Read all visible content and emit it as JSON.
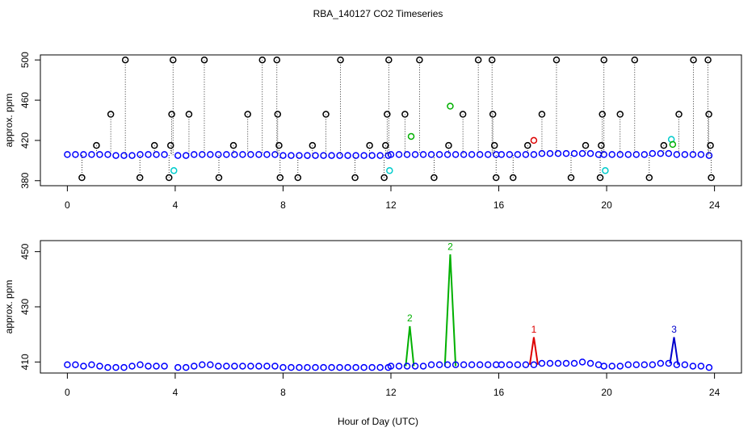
{
  "title": "RBA_140127  CO2 Timeseries",
  "x_label": "Hour of Day (UTC)",
  "chart_data": [
    {
      "type": "scatter",
      "y_label": "approx. ppm",
      "xlim": [
        -1,
        25
      ],
      "ylim": [
        375,
        505
      ],
      "xticks": [
        0,
        4,
        8,
        12,
        16,
        20,
        24
      ],
      "yticks": [
        380,
        420,
        460,
        500
      ],
      "series": [
        {
          "color": "#0000ff",
          "style": "points",
          "x": [
            0,
            0.3,
            0.6,
            0.9,
            1.2,
            1.5,
            1.8,
            2.1,
            2.4,
            2.7,
            3.0,
            3.3,
            3.6,
            4.1,
            4.4,
            4.7,
            5.0,
            5.3,
            5.6,
            5.9,
            6.2,
            6.5,
            6.8,
            7.1,
            7.4,
            7.7,
            8.0,
            8.3,
            8.6,
            8.9,
            9.2,
            9.5,
            9.8,
            10.1,
            10.4,
            10.7,
            11.0,
            11.3,
            11.6,
            11.9,
            12.0,
            12.3,
            12.6,
            12.9,
            13.2,
            13.5,
            13.8,
            14.1,
            14.4,
            14.7,
            15.0,
            15.3,
            15.6,
            15.9,
            16.1,
            16.4,
            16.7,
            17.0,
            17.3,
            17.6,
            17.9,
            18.2,
            18.5,
            18.8,
            19.1,
            19.4,
            19.7,
            19.9,
            20.2,
            20.5,
            20.8,
            21.1,
            21.4,
            21.7,
            22.0,
            22.3,
            22.6,
            22.9,
            23.2,
            23.5,
            23.8
          ],
          "values": [
            406,
            406,
            406,
            406,
            406,
            406,
            405,
            405,
            405,
            406,
            406,
            406,
            406,
            405,
            405,
            406,
            406,
            406,
            406,
            406,
            406,
            406,
            406,
            406,
            406,
            406,
            405,
            405,
            405,
            405,
            405,
            405,
            405,
            405,
            405,
            405,
            405,
            405,
            405,
            405,
            406,
            406,
            406,
            406,
            406,
            406,
            406,
            406,
            406,
            406,
            406,
            406,
            406,
            406,
            406,
            406,
            406,
            406,
            406,
            407,
            407,
            407,
            407,
            407,
            407,
            407,
            406,
            406,
            406,
            406,
            406,
            406,
            406,
            407,
            407,
            407,
            406,
            406,
            406,
            406,
            405
          ]
        },
        {
          "color": "#000000",
          "style": "drop",
          "x": [
            0.54,
            1.08,
            1.61,
            2.15,
            2.69,
            3.23,
            3.77,
            3.83,
            3.87,
            3.92,
            4.51,
            5.08,
            5.62,
            6.16,
            6.69,
            7.23,
            7.77,
            7.8,
            7.85,
            7.89,
            8.55,
            9.09,
            9.59,
            10.13,
            10.67,
            11.21,
            11.75,
            11.8,
            11.86,
            11.92,
            12.52,
            13.06,
            13.6,
            14.14,
            14.67,
            15.24,
            15.75,
            15.78,
            15.84,
            15.9,
            16.53,
            17.07,
            17.6,
            18.14,
            18.68,
            19.22,
            19.76,
            19.8,
            19.84,
            19.9,
            20.5,
            21.04,
            21.58,
            22.12,
            22.68,
            23.22,
            23.76,
            23.79,
            23.85,
            23.88
          ],
          "values": [
            383,
            415,
            446,
            500,
            383,
            415,
            383,
            415,
            446,
            500,
            446,
            500,
            383,
            415,
            446,
            500,
            500,
            446,
            415,
            383,
            383,
            415,
            446,
            500,
            383,
            415,
            383,
            415,
            446,
            500,
            446,
            500,
            383,
            415,
            446,
            500,
            500,
            446,
            415,
            383,
            383,
            415,
            446,
            500,
            383,
            415,
            383,
            415,
            446,
            500,
            446,
            500,
            383,
            415,
            446,
            500,
            500,
            446,
            415,
            383
          ]
        },
        {
          "color": "#00cccc",
          "style": "points",
          "x": [
            3.95,
            11.95,
            19.95,
            22.4
          ],
          "values": [
            390,
            390,
            390,
            421
          ]
        },
        {
          "color": "#dd0000",
          "style": "points",
          "x": [
            17.3
          ],
          "values": [
            420
          ]
        },
        {
          "color": "#00b000",
          "style": "points",
          "x": [
            12.75,
            14.2,
            22.45
          ],
          "values": [
            424,
            454,
            416
          ]
        }
      ]
    },
    {
      "type": "scatter",
      "y_label": "approx. ppm",
      "xlim": [
        -1,
        25
      ],
      "ylim": [
        406,
        454
      ],
      "xticks": [
        0,
        4,
        8,
        12,
        16,
        20,
        24
      ],
      "yticks": [
        410,
        430,
        450
      ],
      "series": [
        {
          "color": "#00b000",
          "style": "line",
          "x": [
            12.55,
            12.7,
            12.85,
            13.0,
            14.0,
            14.2,
            14.4
          ],
          "values": [
            408.5,
            423,
            408.5,
            null,
            408.5,
            449,
            408.5
          ]
        },
        {
          "color": "#dd0000",
          "style": "line",
          "x": [
            17.15,
            17.3,
            17.45
          ],
          "values": [
            409,
            419,
            409
          ]
        },
        {
          "color": "#0000cc",
          "style": "line",
          "x": [
            22.35,
            22.5,
            22.65
          ],
          "values": [
            409.5,
            419,
            409
          ]
        },
        {
          "color": "#0000ff",
          "style": "points",
          "x": [
            0,
            0.3,
            0.6,
            0.9,
            1.2,
            1.5,
            1.8,
            2.1,
            2.4,
            2.7,
            3.0,
            3.3,
            3.6,
            4.1,
            4.4,
            4.7,
            5.0,
            5.3,
            5.6,
            5.9,
            6.2,
            6.5,
            6.8,
            7.1,
            7.4,
            7.7,
            8.0,
            8.3,
            8.6,
            8.9,
            9.2,
            9.5,
            9.8,
            10.1,
            10.4,
            10.7,
            11.0,
            11.3,
            11.6,
            11.9,
            12.0,
            12.3,
            12.6,
            12.9,
            13.2,
            13.5,
            13.8,
            14.1,
            14.4,
            14.7,
            15.0,
            15.3,
            15.6,
            15.9,
            16.1,
            16.4,
            16.7,
            17.0,
            17.3,
            17.6,
            17.9,
            18.2,
            18.5,
            18.8,
            19.1,
            19.4,
            19.7,
            19.9,
            20.2,
            20.5,
            20.8,
            21.1,
            21.4,
            21.7,
            22.0,
            22.3,
            22.6,
            22.9,
            23.2,
            23.5,
            23.8
          ],
          "values": [
            409,
            409,
            408.5,
            409,
            408.5,
            408,
            408,
            408,
            408.5,
            409,
            408.5,
            408.5,
            408.5,
            408,
            408,
            408.5,
            409,
            409,
            408.5,
            408.5,
            408.5,
            408.5,
            408.5,
            408.5,
            408.5,
            408.5,
            408,
            408,
            408,
            408,
            408,
            408,
            408,
            408,
            408,
            408,
            408,
            408,
            408,
            408,
            408.5,
            408.5,
            408.5,
            408.5,
            408.5,
            409,
            409,
            409,
            409,
            409,
            409,
            409,
            409,
            409,
            409,
            409,
            409,
            409,
            409,
            409.5,
            409.5,
            409.5,
            409.5,
            409.5,
            410,
            409.5,
            409,
            408.5,
            408.5,
            408.5,
            409,
            409,
            409,
            409,
            409.5,
            409.5,
            409,
            409,
            408.5,
            408.5,
            408
          ]
        }
      ],
      "annotations": [
        {
          "text": "2",
          "x": 12.7,
          "y": 423,
          "color": "#00b000"
        },
        {
          "text": "2",
          "x": 14.2,
          "y": 449,
          "color": "#00b000"
        },
        {
          "text": "1",
          "x": 17.3,
          "y": 419,
          "color": "#dd0000"
        },
        {
          "text": "3",
          "x": 22.5,
          "y": 419,
          "color": "#0000cc"
        }
      ]
    }
  ]
}
